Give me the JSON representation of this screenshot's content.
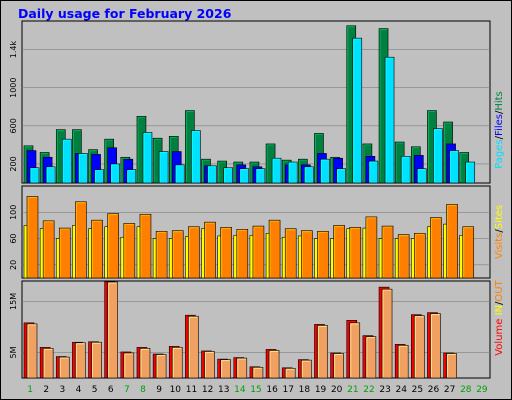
{
  "title": "Daily usage for February 2026",
  "colors": {
    "background": "#c0c0c0",
    "plot_bg": "#c0c0c0",
    "hits": "#008040",
    "files": "#0000ff",
    "pages": "#00e0ff",
    "visits": "#ff8000",
    "sites": "#ffff00",
    "kbytes": "#ff0000",
    "title": "#0000ff",
    "weekend_label": "#00a000",
    "weekday_label": "#000000"
  },
  "legends": {
    "top": [
      {
        "text": "Pages",
        "color": "#00e0ff"
      },
      {
        "text": "/",
        "color": "#000000"
      },
      {
        "text": "Files",
        "color": "#0000ff"
      },
      {
        "text": "/",
        "color": "#000000"
      },
      {
        "text": "Hits",
        "color": "#008040"
      }
    ],
    "middle": [
      {
        "text": "Visits",
        "color": "#ff8000"
      },
      {
        "text": "/",
        "color": "#000000"
      },
      {
        "text": "Sites",
        "color": "#ffff00"
      }
    ],
    "bottom": [
      {
        "text": "Volume",
        "color": "#ff0000"
      },
      {
        "text": "IN",
        "color": "#ffff00"
      },
      {
        "text": "/",
        "color": "#000000"
      },
      {
        "text": "OUT",
        "color": "#ff8000"
      }
    ]
  },
  "days": [
    "1",
    "2",
    "3",
    "4",
    "5",
    "6",
    "7",
    "8",
    "9",
    "10",
    "11",
    "12",
    "13",
    "14",
    "15",
    "16",
    "17",
    "18",
    "19",
    "20",
    "21",
    "22",
    "23",
    "24",
    "25",
    "26",
    "27",
    "28",
    "29"
  ],
  "weekend_days": [
    1,
    7,
    8,
    14,
    15,
    21,
    22,
    28,
    29
  ],
  "chart_data": [
    {
      "type": "bar",
      "title": "Pages / Files / Hits",
      "ylim": [
        0,
        1700
      ],
      "yticks": [
        "200",
        "600",
        "1000",
        "1.4k"
      ],
      "ytick_values": [
        200,
        600,
        1000,
        1400
      ],
      "series": [
        {
          "name": "Hits",
          "values": [
            390,
            320,
            560,
            560,
            350,
            460,
            270,
            700,
            470,
            490,
            760,
            250,
            230,
            220,
            220,
            410,
            240,
            250,
            520,
            270,
            1650,
            410,
            1620,
            430,
            380,
            760,
            640,
            320,
            null
          ]
        },
        {
          "name": "Files",
          "values": [
            340,
            270,
            0,
            310,
            300,
            370,
            250,
            0,
            0,
            330,
            0,
            180,
            0,
            190,
            170,
            0,
            190,
            190,
            310,
            260,
            0,
            280,
            0,
            0,
            290,
            0,
            410,
            0,
            null
          ]
        },
        {
          "name": "Pages",
          "values": [
            160,
            170,
            460,
            310,
            140,
            200,
            140,
            530,
            330,
            190,
            550,
            180,
            160,
            150,
            150,
            260,
            220,
            170,
            250,
            150,
            1520,
            230,
            1320,
            280,
            150,
            570,
            340,
            220,
            null
          ]
        }
      ]
    },
    {
      "type": "bar",
      "title": "Visits / Sites",
      "ylim": [
        0,
        140
      ],
      "yticks": [
        "20",
        "60",
        "100"
      ],
      "ytick_values": [
        20,
        60,
        100
      ],
      "series": [
        {
          "name": "Visits",
          "values": [
            124,
            87,
            76,
            116,
            88,
            98,
            83,
            97,
            71,
            72,
            78,
            85,
            77,
            74,
            79,
            88,
            75,
            72,
            71,
            80,
            77,
            93,
            79,
            66,
            68,
            92,
            112,
            78,
            null
          ]
        },
        {
          "name": "Sites",
          "values": [
            80,
            75,
            60,
            80,
            75,
            78,
            62,
            78,
            60,
            60,
            63,
            75,
            64,
            65,
            65,
            68,
            62,
            64,
            60,
            60,
            75,
            76,
            60,
            60,
            60,
            78,
            82,
            65,
            null
          ]
        }
      ]
    },
    {
      "type": "bar",
      "title": "Volume IN / OUT",
      "ylim": [
        0,
        19000000
      ],
      "yticks": [
        "5M",
        "15M"
      ],
      "ytick_values": [
        5000000,
        15000000
      ],
      "series": [
        {
          "name": "IN",
          "values": [
            10800000,
            6000000,
            4200000,
            7000000,
            7100000,
            18900000,
            5100000,
            6000000,
            4700000,
            6200000,
            12300000,
            5300000,
            3700000,
            4000000,
            2200000,
            5600000,
            2000000,
            3600000,
            10500000,
            4900000,
            11300000,
            8300000,
            17800000,
            6600000,
            12400000,
            12800000,
            4900000,
            null,
            null
          ]
        },
        {
          "name": "OUT",
          "values": [
            10600000,
            5800000,
            4100000,
            6900000,
            7000000,
            18800000,
            4900000,
            5800000,
            4600000,
            6000000,
            12100000,
            5200000,
            3600000,
            3900000,
            2100000,
            5400000,
            1900000,
            3500000,
            10300000,
            4800000,
            10800000,
            8100000,
            17400000,
            6400000,
            12200000,
            12600000,
            4800000,
            null,
            null
          ]
        }
      ]
    }
  ]
}
